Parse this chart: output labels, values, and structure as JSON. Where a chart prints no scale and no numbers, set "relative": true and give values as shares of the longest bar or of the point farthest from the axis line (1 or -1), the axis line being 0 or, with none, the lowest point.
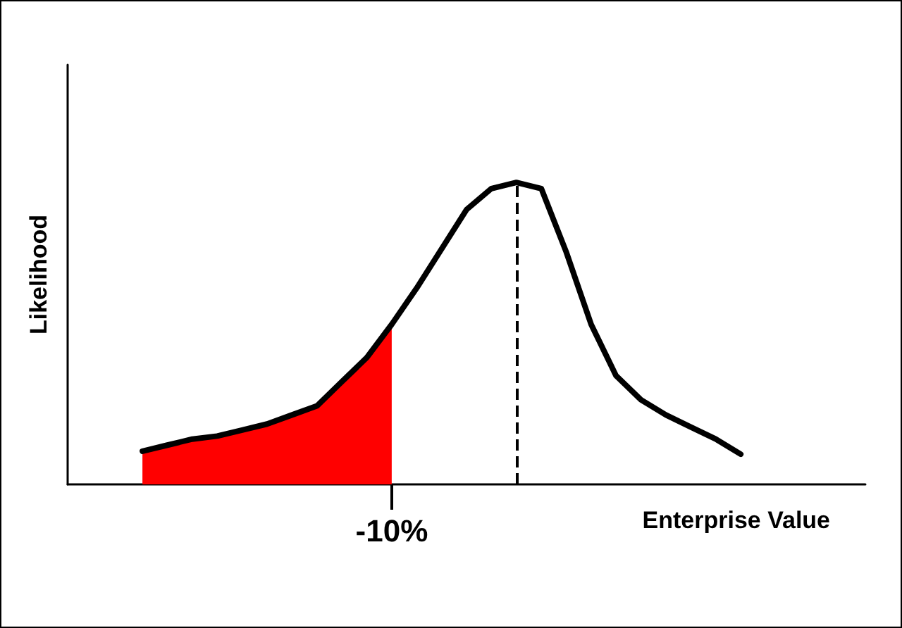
{
  "chart_data": {
    "type": "line",
    "relative": true,
    "xlabel": "Enterprise Value",
    "ylabel": "Likelihood",
    "annotations": [
      "-10%"
    ],
    "categories": [
      null,
      null,
      null,
      null,
      null,
      null,
      null,
      null,
      null,
      null,
      null,
      null,
      null,
      null,
      null,
      null,
      null,
      null,
      null,
      null,
      null,
      null,
      null,
      null,
      null,
      null,
      null,
      null,
      null,
      null,
      null,
      null,
      null
    ],
    "series": [
      {
        "type": "area",
        "color": "#ff0000",
        "values": [
          null,
          null,
          null,
          0.11,
          0.13,
          0.15,
          0.16,
          0.18,
          0.2,
          0.23,
          0.26,
          0.34,
          0.42,
          0.53,
          null,
          null,
          null,
          null,
          null,
          null,
          null,
          null,
          null,
          null,
          null,
          null,
          null,
          null,
          null,
          null,
          null,
          null,
          null
        ]
      },
      {
        "color": "#000000",
        "values": [
          null,
          null,
          null,
          0.11,
          0.13,
          0.15,
          0.16,
          0.18,
          0.2,
          0.23,
          0.26,
          0.34,
          0.42,
          0.53,
          0.65,
          0.78,
          0.91,
          0.98,
          1.0,
          0.98,
          0.77,
          0.53,
          0.36,
          0.28,
          0.23,
          0.19,
          0.15,
          0.1,
          null,
          null,
          null,
          null,
          null
        ]
      }
    ],
    "grid": false,
    "marker": "none",
    "line_style": "solid"
  }
}
